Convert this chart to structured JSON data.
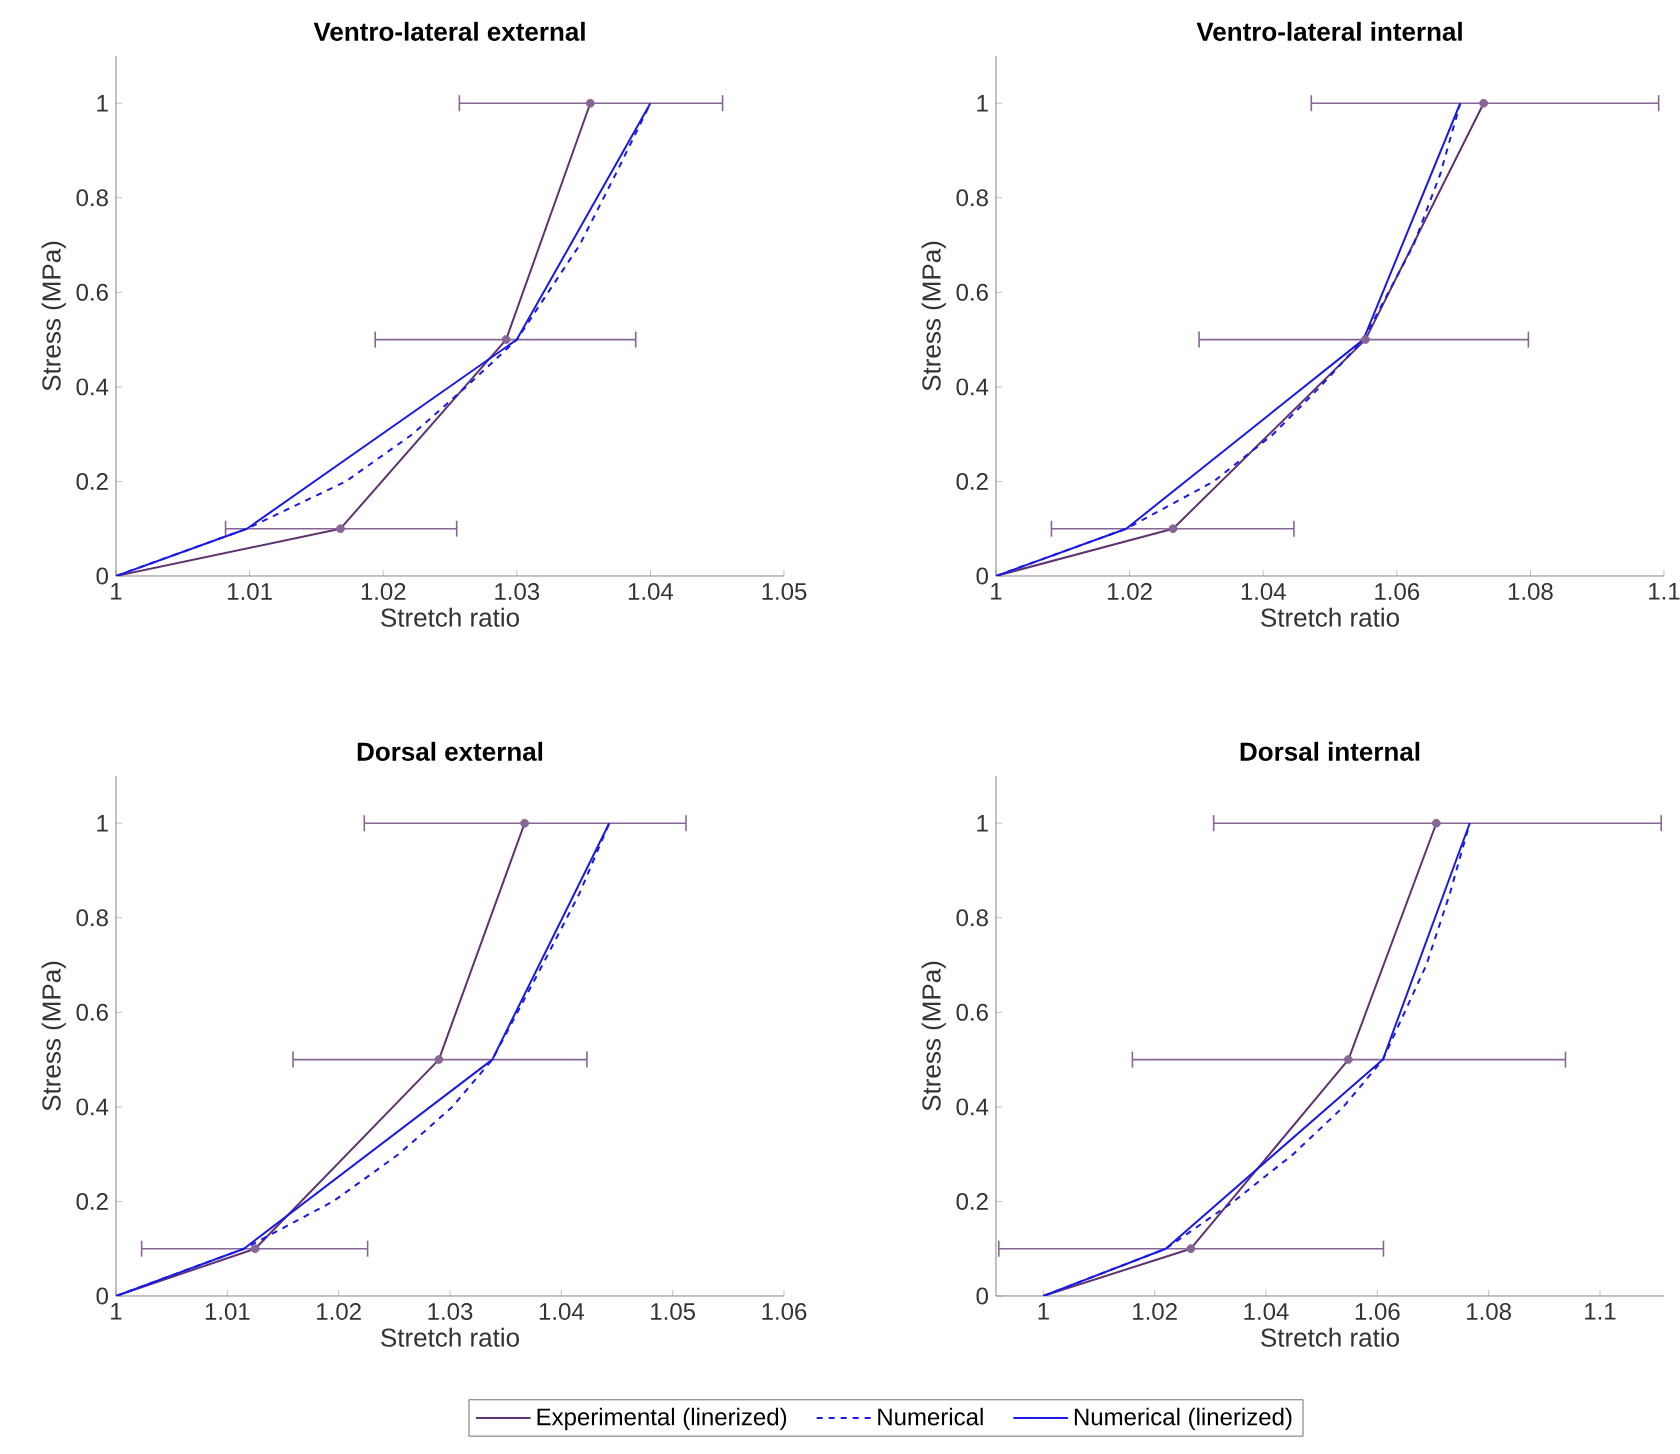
{
  "chart_data": [
    {
      "type": "line",
      "title": "Ventro-lateral external",
      "xlabel": "Stretch ratio",
      "ylabel": "Stress (MPa)",
      "xlim": [
        1,
        1.05
      ],
      "ylim": [
        0,
        1.1
      ],
      "xticks": [
        1,
        1.01,
        1.02,
        1.03,
        1.04,
        1.05
      ],
      "yticks": [
        0,
        0.2,
        0.4,
        0.6,
        0.8,
        1
      ],
      "series": [
        {
          "color": "#5e3370",
          "line_style": "solid",
          "x": [
            1,
            1.0168,
            1.0292,
            1.0355
          ],
          "values": [
            0,
            0.1,
            0.5,
            1
          ],
          "xerrors": [
            null,
            [
              1.0082,
              1.0255
            ],
            [
              1.0194,
              1.0389
            ],
            [
              1.0257,
              1.0454
            ]
          ]
        },
        {
          "color": "#1a1ae6",
          "line_style": "dashed",
          "x": [
            1,
            1.0098,
            1.0172,
            1.0222,
            1.0262,
            1.03,
            1.0347,
            1.0374,
            1.04
          ],
          "values": [
            0,
            0.1,
            0.2,
            0.3,
            0.4,
            0.5,
            0.7,
            0.85,
            1
          ]
        },
        {
          "color": "#1a1ae6",
          "line_style": "solid",
          "x": [
            1,
            1.0098,
            1.03,
            1.04
          ],
          "values": [
            0,
            0.1,
            0.5,
            1
          ]
        }
      ]
    },
    {
      "type": "line",
      "title": "Ventro-lateral internal",
      "xlabel": "Stretch ratio",
      "ylabel": "Stress (MPa)",
      "xlim": [
        1,
        1.1
      ],
      "ylim": [
        0,
        1.1
      ],
      "xticks": [
        1,
        1.02,
        1.04,
        1.06,
        1.08,
        1.1
      ],
      "yticks": [
        0,
        0.2,
        0.4,
        0.6,
        0.8,
        1
      ],
      "series": [
        {
          "color": "#5e3370",
          "line_style": "solid",
          "x": [
            1,
            1.0265,
            1.0553,
            1.073
          ],
          "values": [
            0,
            0.1,
            0.5,
            1
          ],
          "xerrors": [
            null,
            [
              1.0083,
              1.0446
            ],
            [
              1.0304,
              1.0797
            ],
            [
              1.0472,
              1.0992
            ]
          ]
        },
        {
          "color": "#1a1ae6",
          "line_style": "dashed",
          "x": [
            1,
            1.0195,
            1.0326,
            1.0415,
            1.0485,
            1.055,
            1.0625,
            1.0665,
            1.0695
          ],
          "values": [
            0,
            0.1,
            0.2,
            0.3,
            0.4,
            0.5,
            0.7,
            0.85,
            1
          ]
        },
        {
          "color": "#1a1ae6",
          "line_style": "solid",
          "x": [
            1,
            1.0195,
            1.055,
            1.0695
          ],
          "values": [
            0,
            0.1,
            0.5,
            1
          ]
        }
      ]
    },
    {
      "type": "line",
      "title": "Dorsal external",
      "xlabel": "Stretch ratio",
      "ylabel": "Stress (MPa)",
      "xlim": [
        1,
        1.06
      ],
      "ylim": [
        0,
        1.1
      ],
      "xticks": [
        1,
        1.01,
        1.02,
        1.03,
        1.04,
        1.05,
        1.06
      ],
      "yticks": [
        0,
        0.2,
        0.4,
        0.6,
        0.8,
        1
      ],
      "series": [
        {
          "color": "#5e3370",
          "line_style": "solid",
          "x": [
            1,
            1.0125,
            1.029,
            1.0367
          ],
          "values": [
            0,
            0.1,
            0.5,
            1
          ],
          "xerrors": [
            null,
            [
              1.0023,
              1.0226
            ],
            [
              1.0159,
              1.0423
            ],
            [
              1.0223,
              1.0512
            ]
          ]
        },
        {
          "color": "#1a1ae6",
          "line_style": "dashed",
          "x": [
            1,
            1.0115,
            1.0195,
            1.0254,
            1.0302,
            1.0338,
            1.0383,
            1.0416,
            1.0443
          ],
          "values": [
            0,
            0.1,
            0.2,
            0.3,
            0.4,
            0.5,
            0.7,
            0.85,
            1
          ]
        },
        {
          "color": "#1a1ae6",
          "line_style": "solid",
          "x": [
            1,
            1.0115,
            1.0338,
            1.0443
          ],
          "values": [
            0,
            0.1,
            0.5,
            1
          ]
        }
      ]
    },
    {
      "type": "line",
      "title": "Dorsal internal",
      "xlabel": "Stretch ratio",
      "ylabel": "Stress (MPa)",
      "xlim": [
        0.9915,
        1.1115
      ],
      "ylim": [
        0,
        1.1
      ],
      "xticks": [
        1,
        1.02,
        1.04,
        1.06,
        1.08,
        1.1
      ],
      "yticks": [
        0,
        0.2,
        0.4,
        0.6,
        0.8,
        1
      ],
      "legend": "bottom",
      "series": [
        {
          "name": "Experimental (linerized)",
          "color": "#5e3370",
          "line_style": "solid",
          "x": [
            1,
            1.0265,
            1.0548,
            1.0706
          ],
          "values": [
            0,
            0.1,
            0.5,
            1
          ],
          "xerrors": [
            null,
            [
              0.992,
              1.0611
            ],
            [
              1.016,
              1.0938
            ],
            [
              1.0306,
              1.111
            ]
          ]
        },
        {
          "name": "Numerical",
          "color": "#1a1ae6",
          "line_style": "dashed",
          "x": [
            1,
            1.022,
            1.0342,
            1.0449,
            1.0539,
            1.061,
            1.0688,
            1.073,
            1.0766
          ],
          "values": [
            0,
            0.1,
            0.2,
            0.3,
            0.4,
            0.5,
            0.7,
            0.85,
            1
          ]
        },
        {
          "name": "Numerical (linerized)",
          "color": "#1a1ae6",
          "line_style": "solid",
          "x": [
            1,
            1.022,
            1.061,
            1.0766
          ],
          "values": [
            0,
            0.1,
            0.5,
            1
          ]
        }
      ]
    }
  ]
}
